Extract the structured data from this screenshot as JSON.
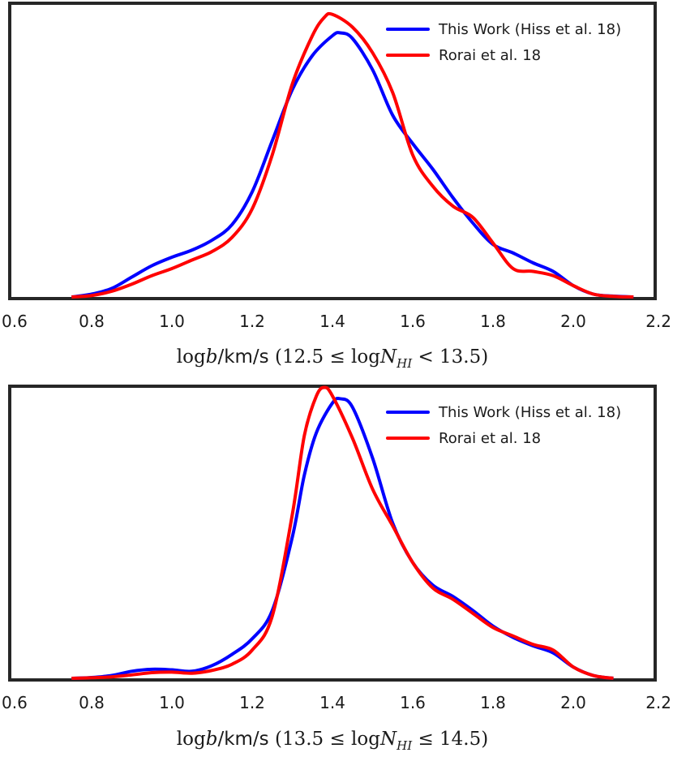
{
  "chart_data": [
    {
      "type": "line",
      "title": "",
      "xlabel": {
        "prefix": "log",
        "var": "b",
        "unit": "/km/s",
        "range_open": " (12.5 ≤ log",
        "sym": "N",
        "sub": "HI",
        "range_close": " < 13.5)"
      },
      "ylabel": "",
      "xlim": [
        0.6,
        2.2
      ],
      "ylim": [
        0,
        1.0
      ],
      "x_ticks": [
        0.6,
        0.8,
        1.0,
        1.2,
        1.4,
        1.6,
        1.8,
        2.0,
        2.2
      ],
      "x_tick_labels": [
        "0.6",
        "0.8",
        "1.0",
        "1.2",
        "1.4",
        "1.6",
        "1.8",
        "2.0",
        "2.2"
      ],
      "grid": false,
      "legend_position": "top-right",
      "series": [
        {
          "name": "This Work (Hiss et al. 18)",
          "color": "#0000ff",
          "x": [
            0.75,
            0.8,
            0.85,
            0.9,
            0.95,
            1.0,
            1.05,
            1.1,
            1.15,
            1.2,
            1.25,
            1.3,
            1.35,
            1.4,
            1.42,
            1.45,
            1.5,
            1.55,
            1.6,
            1.65,
            1.7,
            1.75,
            1.8,
            1.85,
            1.9,
            1.95,
            2.0,
            2.05,
            2.1,
            2.15
          ],
          "y": [
            0.0,
            0.01,
            0.03,
            0.07,
            0.11,
            0.14,
            0.165,
            0.2,
            0.255,
            0.37,
            0.55,
            0.73,
            0.85,
            0.92,
            0.93,
            0.91,
            0.8,
            0.64,
            0.54,
            0.45,
            0.35,
            0.26,
            0.185,
            0.155,
            0.12,
            0.09,
            0.04,
            0.01,
            0.003,
            0.0
          ]
        },
        {
          "name": "Rorai et al. 18",
          "color": "#ff0000",
          "x": [
            0.75,
            0.8,
            0.85,
            0.9,
            0.95,
            1.0,
            1.05,
            1.1,
            1.15,
            1.2,
            1.25,
            1.3,
            1.35,
            1.38,
            1.4,
            1.45,
            1.5,
            1.55,
            1.6,
            1.65,
            1.7,
            1.75,
            1.8,
            1.85,
            1.9,
            1.95,
            2.0,
            2.05,
            2.1,
            2.15
          ],
          "y": [
            0.0,
            0.005,
            0.02,
            0.045,
            0.075,
            0.1,
            0.13,
            0.16,
            0.21,
            0.31,
            0.5,
            0.75,
            0.92,
            0.985,
            0.995,
            0.95,
            0.86,
            0.72,
            0.5,
            0.39,
            0.32,
            0.28,
            0.19,
            0.1,
            0.09,
            0.075,
            0.04,
            0.01,
            0.002,
            0.0
          ]
        }
      ]
    },
    {
      "type": "line",
      "title": "",
      "xlabel": {
        "prefix": "log",
        "var": "b",
        "unit": "/km/s",
        "range_open": " (13.5 ≤ log",
        "sym": "N",
        "sub": "HI",
        "range_close": " ≤ 14.5)"
      },
      "ylabel": "",
      "xlim": [
        0.6,
        2.2
      ],
      "ylim": [
        0,
        1.0
      ],
      "x_ticks": [
        0.6,
        0.8,
        1.0,
        1.2,
        1.4,
        1.6,
        1.8,
        2.0,
        2.2
      ],
      "x_tick_labels": [
        "0.6",
        "0.8",
        "1.0",
        "1.2",
        "1.4",
        "1.6",
        "1.8",
        "2.0",
        "2.2"
      ],
      "grid": false,
      "legend_position": "top-right",
      "series": [
        {
          "name": "This Work (Hiss et al. 18)",
          "color": "#0000ff",
          "x": [
            0.75,
            0.8,
            0.85,
            0.9,
            0.95,
            1.0,
            1.05,
            1.1,
            1.15,
            1.2,
            1.25,
            1.3,
            1.33,
            1.36,
            1.4,
            1.42,
            1.45,
            1.5,
            1.55,
            1.6,
            1.65,
            1.7,
            1.75,
            1.8,
            1.85,
            1.9,
            1.95,
            2.0,
            2.05,
            2.1
          ],
          "y": [
            0.0,
            0.003,
            0.01,
            0.025,
            0.032,
            0.03,
            0.025,
            0.045,
            0.085,
            0.14,
            0.24,
            0.5,
            0.72,
            0.87,
            0.975,
            0.99,
            0.96,
            0.78,
            0.55,
            0.41,
            0.33,
            0.29,
            0.24,
            0.185,
            0.145,
            0.115,
            0.09,
            0.04,
            0.01,
            0.0
          ]
        },
        {
          "name": "Rorai et al. 18",
          "color": "#ff0000",
          "x": [
            0.75,
            0.8,
            0.85,
            0.9,
            0.95,
            1.0,
            1.05,
            1.1,
            1.15,
            1.2,
            1.25,
            1.3,
            1.33,
            1.36,
            1.38,
            1.4,
            1.45,
            1.5,
            1.55,
            1.6,
            1.65,
            1.7,
            1.75,
            1.8,
            1.85,
            1.9,
            1.95,
            2.0,
            2.05,
            2.1
          ],
          "y": [
            0.0,
            0.002,
            0.005,
            0.012,
            0.02,
            0.022,
            0.018,
            0.028,
            0.05,
            0.1,
            0.22,
            0.58,
            0.86,
            1.0,
            1.03,
            1.0,
            0.85,
            0.67,
            0.54,
            0.41,
            0.32,
            0.28,
            0.23,
            0.18,
            0.15,
            0.12,
            0.1,
            0.04,
            0.01,
            0.0
          ]
        }
      ]
    }
  ]
}
